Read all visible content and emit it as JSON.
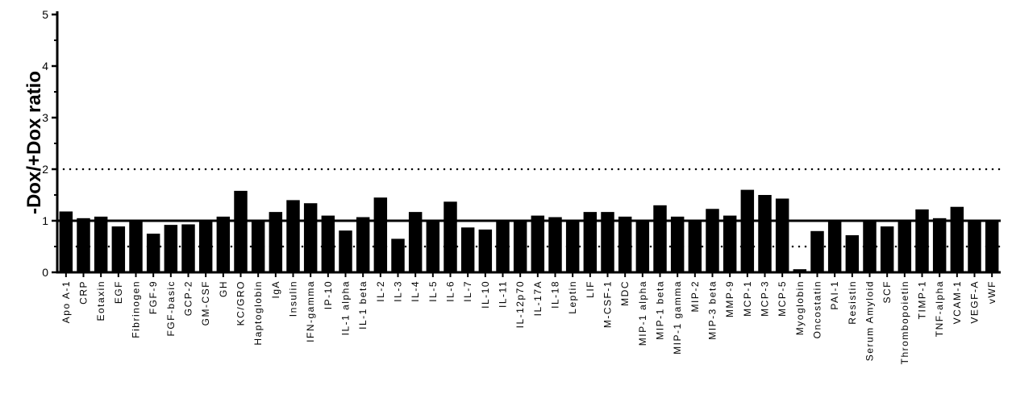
{
  "chart_data": {
    "type": "bar",
    "title": "",
    "xlabel": "",
    "ylabel": "-Dox/+Dox ratio",
    "ylim": [
      0,
      5
    ],
    "yticks": [
      0,
      1,
      2,
      3,
      4,
      5
    ],
    "grid": false,
    "reference_lines": [
      {
        "y": 1,
        "style": "solid"
      },
      {
        "y": 2,
        "style": "dotted"
      },
      {
        "y": 0.5,
        "style": "dotted"
      }
    ],
    "colors": {
      "bar": "#000000",
      "axis": "#000000"
    },
    "categories": [
      "Apo A-1",
      "CRP",
      "Eotaxin",
      "EGF",
      "Fibrinogen",
      "FGF-9",
      "FGF-basic",
      "GCP-2",
      "GM-CSF",
      "GH",
      "KC/GRO",
      "Haptoglobin",
      "IgA",
      "Insulin",
      "IFN-gamma",
      "IP-10",
      "IL-1 alpha",
      "IL-1 beta",
      "IL-2",
      "IL-3",
      "IL-4",
      "IL-5",
      "IL-6",
      "IL-7",
      "IL-10",
      "IL-11",
      "IL-12p70",
      "IL-17A",
      "IL-18",
      "Leptin",
      "LIF",
      "M-CSF-1",
      "MDC",
      "MIP-1 alpha",
      "MIP-1 beta",
      "MIP-1 gamma",
      "MIP-2",
      "MIP-3 beta",
      "MMP-9",
      "MCP-1",
      "MCP-3",
      "MCP-5",
      "Myoglobin",
      "Oncostatin",
      "PAI-1",
      "Resistin",
      "Serum Amyloid",
      "SCF",
      "Thrombopoietin",
      "TIMP-1",
      "TNF-alpha",
      "VCAM-1",
      "VEGF-A",
      "vWF"
    ],
    "values": [
      1.18,
      1.05,
      1.08,
      0.89,
      1.0,
      0.75,
      0.92,
      0.93,
      1.02,
      1.08,
      1.58,
      1.0,
      1.17,
      1.4,
      1.34,
      1.1,
      0.81,
      1.07,
      1.45,
      0.65,
      1.17,
      1.0,
      1.37,
      0.87,
      0.83,
      1.0,
      1.0,
      1.1,
      1.07,
      1.0,
      1.17,
      1.17,
      1.08,
      1.0,
      1.3,
      1.08,
      1.0,
      1.23,
      1.1,
      1.6,
      1.5,
      1.43,
      0.06,
      0.8,
      1.0,
      0.72,
      1.0,
      0.89,
      1.0,
      1.22,
      1.05,
      1.27,
      1.0,
      1.0
    ]
  }
}
